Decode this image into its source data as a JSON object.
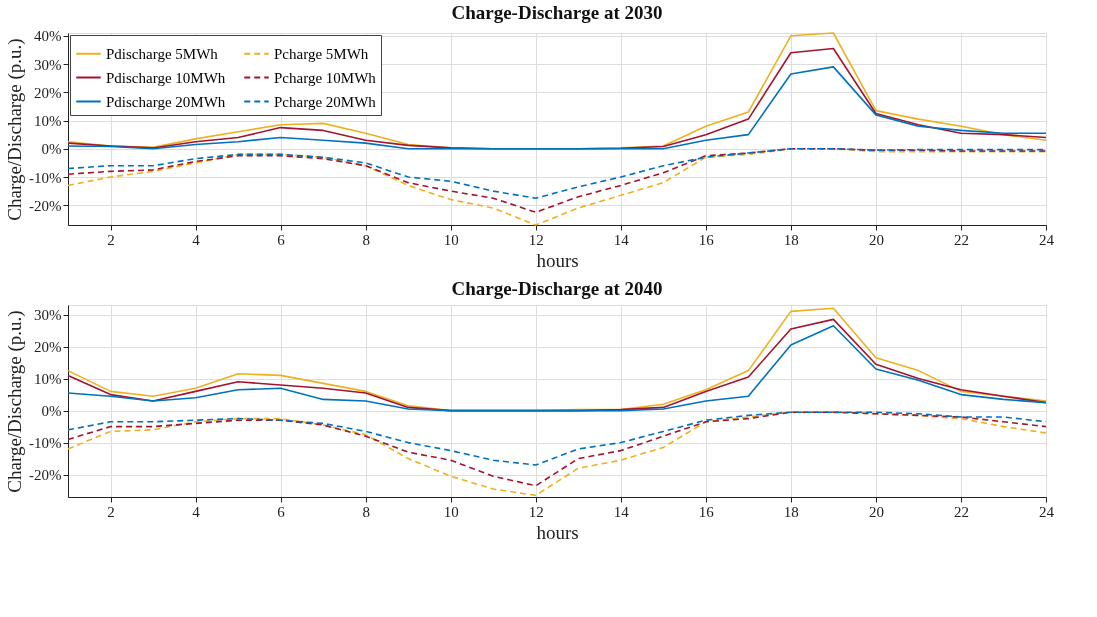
{
  "chart_data": [
    {
      "type": "line",
      "title": "Charge-Discharge at 2030",
      "xlabel": "hours",
      "ylabel": "Charge/Discharge (p.u.)",
      "x": [
        1,
        2,
        3,
        4,
        5,
        6,
        7,
        8,
        9,
        10,
        11,
        12,
        13,
        14,
        15,
        16,
        17,
        18,
        19,
        20,
        21,
        22,
        23,
        24
      ],
      "xlim": [
        1,
        24
      ],
      "xticks": [
        2,
        4,
        6,
        8,
        10,
        12,
        14,
        16,
        18,
        20,
        22,
        24
      ],
      "ylim": [
        -27,
        41
      ],
      "yticks": [
        {
          "value": -20,
          "label": "-20%"
        },
        {
          "value": -10,
          "label": "-10%"
        },
        {
          "value": 0,
          "label": "0%"
        },
        {
          "value": 10,
          "label": "10%"
        },
        {
          "value": 20,
          "label": "20%"
        },
        {
          "value": 30,
          "label": "30%"
        },
        {
          "value": 40,
          "label": "40%"
        }
      ],
      "grid": true,
      "legend": "top left",
      "series": [
        {
          "name": "Pdischarge 5MWh",
          "color": "#edb120",
          "line_style": "solid",
          "values": [
            2.5,
            1,
            0.5,
            3.5,
            6,
            8.5,
            9,
            5.5,
            1.5,
            0.3,
            0,
            0,
            0,
            0.3,
            1,
            8,
            13,
            40,
            41,
            13.5,
            10.5,
            8,
            5,
            3
          ]
        },
        {
          "name": "Pdischarge 10MWh",
          "color": "#a2142f",
          "line_style": "solid",
          "values": [
            2,
            1,
            0.3,
            2.5,
            4,
            7.5,
            6.5,
            3,
            1.2,
            0.3,
            0,
            0,
            0,
            0.2,
            0.8,
            5,
            10.5,
            34,
            35.5,
            12.5,
            8.5,
            5.5,
            5,
            4
          ]
        },
        {
          "name": "Pdischarge 20MWh",
          "color": "#0072bd",
          "line_style": "solid",
          "values": [
            1,
            0.8,
            0,
            1.5,
            2.5,
            4,
            3,
            2,
            0,
            0,
            0,
            0,
            0,
            0,
            0,
            3,
            5,
            26.5,
            29,
            12,
            8,
            6.5,
            5.5,
            5.5
          ]
        },
        {
          "name": "Pcharge 5MWh",
          "color": "#edb120",
          "line_style": "dashed",
          "values": [
            -13,
            -10,
            -8,
            -5,
            -2,
            -2,
            -3,
            -6,
            -13,
            -18,
            -21,
            -27,
            -21,
            -16.5,
            -12,
            -3,
            -2,
            0,
            0,
            -1,
            -1,
            -1,
            -1,
            -1
          ]
        },
        {
          "name": "Pcharge 10MWh",
          "color": "#a2142f",
          "line_style": "dashed",
          "values": [
            -9,
            -8,
            -7.5,
            -4.5,
            -2.5,
            -2.5,
            -3.5,
            -6,
            -12,
            -15,
            -17.5,
            -22.5,
            -17,
            -13,
            -8.5,
            -2.5,
            -1.5,
            0,
            0,
            -0.5,
            -0.5,
            -0.8,
            -0.8,
            -0.8
          ]
        },
        {
          "name": "Pcharge 20MWh",
          "color": "#0072bd",
          "line_style": "dashed",
          "values": [
            -7,
            -6,
            -6,
            -3.5,
            -2,
            -2,
            -3,
            -5,
            -10,
            -11.5,
            -15,
            -17.5,
            -13.5,
            -10,
            -6,
            -3,
            -1.5,
            0,
            0,
            -0.5,
            -0.3,
            -0.3,
            -0.3,
            -0.3
          ]
        }
      ]
    },
    {
      "type": "line",
      "title": "Charge-Discharge at 2040",
      "xlabel": "hours",
      "ylabel": "Charge/Discharge (p.u.)",
      "x": [
        1,
        2,
        3,
        4,
        5,
        6,
        7,
        8,
        9,
        10,
        11,
        12,
        13,
        14,
        15,
        16,
        17,
        18,
        19,
        20,
        21,
        22,
        23,
        24
      ],
      "xlim": [
        1,
        24
      ],
      "xticks": [
        2,
        4,
        6,
        8,
        10,
        12,
        14,
        16,
        18,
        20,
        22,
        24
      ],
      "ylim": [
        -27,
        33
      ],
      "yticks": [
        {
          "value": -20,
          "label": "-20%"
        },
        {
          "value": -10,
          "label": "-10%"
        },
        {
          "value": 0,
          "label": "0%"
        },
        {
          "value": 10,
          "label": "10%"
        },
        {
          "value": 20,
          "label": "20%"
        },
        {
          "value": 30,
          "label": "30%"
        }
      ],
      "grid": true,
      "legend": "top left",
      "series": [
        {
          "name": "Pdischarge 5MWh",
          "color": "#edb120",
          "line_style": "solid",
          "values": [
            12.5,
            6,
            4.5,
            7,
            11.5,
            11,
            8.5,
            6,
            1.5,
            0,
            0,
            0,
            0.3,
            0.3,
            2,
            6.5,
            12.5,
            31,
            32,
            16.5,
            12.5,
            6,
            4.5,
            3
          ]
        },
        {
          "name": "Pdischarge 10MWh",
          "color": "#a2142f",
          "line_style": "solid",
          "values": [
            11,
            5,
            3,
            6,
            9,
            8,
            7,
            5.5,
            1,
            0,
            0,
            0,
            0,
            0.3,
            1,
            6,
            10.5,
            25.5,
            28.5,
            14.5,
            10,
            6.5,
            4.5,
            2.5
          ]
        },
        {
          "name": "Pdischarge 20MWh",
          "color": "#0072bd",
          "line_style": "solid",
          "values": [
            5.5,
            4.5,
            3,
            4,
            6.5,
            7,
            3.5,
            3,
            0.5,
            0,
            0,
            0,
            0,
            0,
            0.5,
            3,
            4.5,
            20.5,
            26.5,
            13,
            9.5,
            5,
            3.5,
            2.5
          ]
        },
        {
          "name": "Pcharge 5MWh",
          "color": "#edb120",
          "line_style": "dashed",
          "values": [
            -12,
            -6.5,
            -6,
            -3.5,
            -2.5,
            -2.5,
            -4.5,
            -7.5,
            -15,
            -20.5,
            -24.5,
            -26.5,
            -18,
            -15.5,
            -11.5,
            -3.5,
            -2,
            -0.5,
            -0.5,
            -1,
            -1.5,
            -2.5,
            -5,
            -7
          ]
        },
        {
          "name": "Pcharge 10MWh",
          "color": "#a2142f",
          "line_style": "dashed",
          "values": [
            -9,
            -5,
            -5,
            -4,
            -3,
            -3,
            -4.5,
            -8,
            -13,
            -15.5,
            -20.5,
            -23.5,
            -15,
            -12.5,
            -8,
            -3.5,
            -2.5,
            -0.5,
            -0.5,
            -1,
            -1.5,
            -2,
            -3.5,
            -5
          ]
        },
        {
          "name": "Pcharge 20MWh",
          "color": "#0072bd",
          "line_style": "dashed",
          "values": [
            -6,
            -3.5,
            -3.5,
            -3,
            -2.5,
            -3,
            -4,
            -6.5,
            -10,
            -12.5,
            -15.5,
            -17,
            -12,
            -10,
            -6.5,
            -3,
            -1.5,
            -0.5,
            -0.5,
            -0.5,
            -1,
            -2,
            -2,
            -3.5
          ]
        }
      ]
    }
  ]
}
